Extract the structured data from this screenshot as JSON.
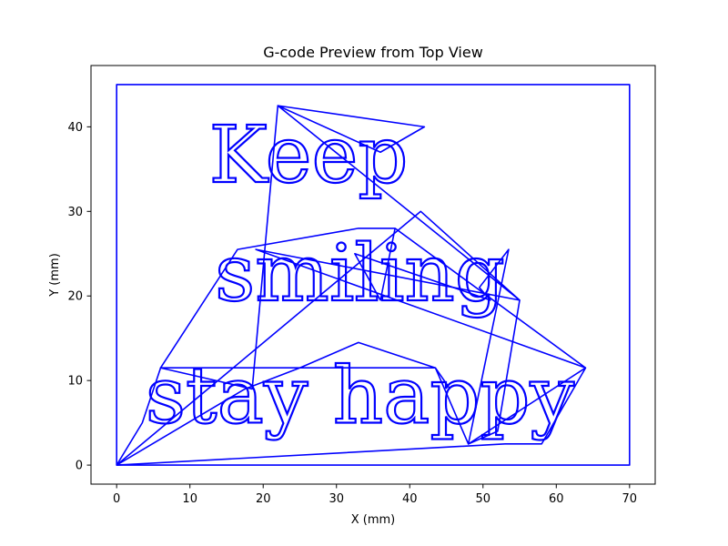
{
  "chart_data": {
    "type": "line",
    "title": "G-code Preview from Top View",
    "xlabel": "X (mm)",
    "ylabel": "Y (mm)",
    "xlim": [
      -3.5,
      73.5
    ],
    "ylim": [
      -2.25,
      47.25
    ],
    "xticks": [
      0,
      10,
      20,
      30,
      40,
      50,
      60,
      70
    ],
    "yticks": [
      0,
      10,
      20,
      30,
      40
    ],
    "grid": false,
    "line_color": "#0000ff",
    "engraved_text": [
      "Keep",
      "smiling",
      "stay happy"
    ],
    "text_baselines": [
      33.5,
      19.5,
      5.0
    ],
    "text_centers": [
      26.2,
      33.2,
      33.2
    ],
    "series": [
      {
        "x": [
          0,
          70,
          70,
          0,
          0
        ],
        "y": [
          0,
          0,
          45,
          45,
          0
        ]
      },
      {
        "x": [
          0,
          41.5,
          55.0,
          22.0,
          55.0,
          19.0,
          64.0,
          38.0,
          33.0,
          16.5,
          6.0,
          25.0,
          33.0,
          43.5,
          48.0,
          64.0,
          58.0,
          53.0,
          0
        ],
        "y": [
          0,
          30.0,
          19.5,
          42.5,
          19.5,
          25.5,
          11.5,
          28.0,
          28.0,
          25.5,
          11.5,
          11.5,
          14.5,
          11.5,
          2.5,
          11.5,
          2.5,
          2.5,
          0
        ]
      },
      {
        "x": [
          22.0,
          36.0,
          42.0,
          22.0,
          18.5,
          6.0,
          3.5,
          0,
          17.5,
          25.0,
          43.5,
          45.5
        ],
        "y": [
          42.5,
          37.0,
          40.0,
          42.5,
          9.0,
          11.5,
          5.0,
          0,
          9.0,
          11.5,
          11.5,
          9.0
        ]
      },
      {
        "x": [
          38.0,
          36.0,
          32.5,
          51.0,
          49.5,
          53.5,
          48.0,
          52.0,
          55.0
        ],
        "y": [
          28.0,
          19.5,
          25.0,
          19.5,
          21.0,
          25.5,
          2.5,
          4.0,
          19.5
        ]
      }
    ]
  }
}
